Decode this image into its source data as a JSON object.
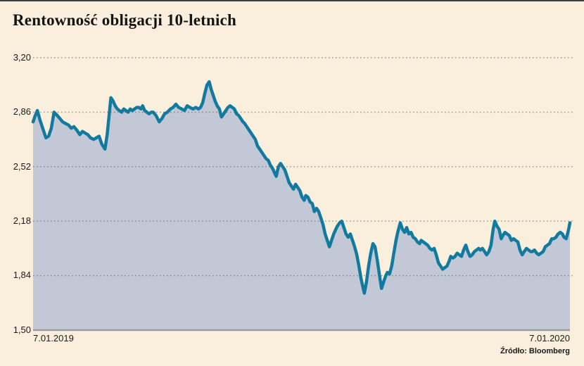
{
  "header": {
    "title": "Rentowność obligacji 10-letnich"
  },
  "source": {
    "label": "Źródło: Bloomberg"
  },
  "chart_data": {
    "type": "area",
    "title": "Rentowność obligacji 10-letnich",
    "x_range": [
      "7.01.2019",
      "7.01.2020"
    ],
    "x_axis_labels": {
      "start": "7.01.2019",
      "end": "7.01.2020"
    },
    "y_ticks": [
      "3,20",
      "2,86",
      "2,52",
      "2,18",
      "1,84",
      "1,50"
    ],
    "y_tick_values": [
      3.2,
      2.86,
      2.52,
      2.18,
      1.84,
      1.5
    ],
    "ylim": [
      1.5,
      3.2
    ],
    "grid": "horizontal-dotted",
    "legend": false,
    "colors": {
      "line": "#137a9f",
      "fill": "#c2c8d5",
      "background": "#faeedd",
      "grid": "#4f4f4f",
      "baseline": "#9b9ba1",
      "text": "#1a1a1a"
    },
    "points": [
      [
        0.0,
        2.8
      ],
      [
        0.004,
        2.84
      ],
      [
        0.008,
        2.87
      ],
      [
        0.013,
        2.81
      ],
      [
        0.018,
        2.76
      ],
      [
        0.024,
        2.7
      ],
      [
        0.029,
        2.71
      ],
      [
        0.034,
        2.76
      ],
      [
        0.039,
        2.86
      ],
      [
        0.045,
        2.84
      ],
      [
        0.05,
        2.82
      ],
      [
        0.055,
        2.8
      ],
      [
        0.06,
        2.79
      ],
      [
        0.066,
        2.78
      ],
      [
        0.071,
        2.76
      ],
      [
        0.076,
        2.77
      ],
      [
        0.081,
        2.75
      ],
      [
        0.087,
        2.72
      ],
      [
        0.092,
        2.74
      ],
      [
        0.097,
        2.73
      ],
      [
        0.102,
        2.72
      ],
      [
        0.107,
        2.7
      ],
      [
        0.113,
        2.69
      ],
      [
        0.118,
        2.7
      ],
      [
        0.123,
        2.71
      ],
      [
        0.128,
        2.66
      ],
      [
        0.134,
        2.63
      ],
      [
        0.138,
        2.72
      ],
      [
        0.142,
        2.85
      ],
      [
        0.145,
        2.95
      ],
      [
        0.149,
        2.93
      ],
      [
        0.153,
        2.9
      ],
      [
        0.157,
        2.88
      ],
      [
        0.161,
        2.87
      ],
      [
        0.165,
        2.86
      ],
      [
        0.169,
        2.88
      ],
      [
        0.173,
        2.87
      ],
      [
        0.177,
        2.86
      ],
      [
        0.181,
        2.88
      ],
      [
        0.185,
        2.87
      ],
      [
        0.189,
        2.88
      ],
      [
        0.193,
        2.89
      ],
      [
        0.197,
        2.89
      ],
      [
        0.201,
        2.88
      ],
      [
        0.204,
        2.9
      ],
      [
        0.208,
        2.87
      ],
      [
        0.212,
        2.86
      ],
      [
        0.216,
        2.85
      ],
      [
        0.22,
        2.86
      ],
      [
        0.224,
        2.86
      ],
      [
        0.229,
        2.84
      ],
      [
        0.235,
        2.8
      ],
      [
        0.24,
        2.82
      ],
      [
        0.245,
        2.85
      ],
      [
        0.25,
        2.86
      ],
      [
        0.256,
        2.88
      ],
      [
        0.261,
        2.89
      ],
      [
        0.266,
        2.91
      ],
      [
        0.271,
        2.89
      ],
      [
        0.277,
        2.88
      ],
      [
        0.282,
        2.87
      ],
      [
        0.287,
        2.9
      ],
      [
        0.292,
        2.89
      ],
      [
        0.298,
        2.88
      ],
      [
        0.303,
        2.89
      ],
      [
        0.308,
        2.88
      ],
      [
        0.312,
        2.89
      ],
      [
        0.316,
        2.92
      ],
      [
        0.32,
        2.98
      ],
      [
        0.324,
        3.03
      ],
      [
        0.328,
        3.05
      ],
      [
        0.332,
        3.0
      ],
      [
        0.336,
        2.96
      ],
      [
        0.339,
        2.93
      ],
      [
        0.343,
        2.9
      ],
      [
        0.347,
        2.88
      ],
      [
        0.351,
        2.83
      ],
      [
        0.355,
        2.85
      ],
      [
        0.359,
        2.87
      ],
      [
        0.363,
        2.89
      ],
      [
        0.367,
        2.9
      ],
      [
        0.371,
        2.89
      ],
      [
        0.375,
        2.88
      ],
      [
        0.379,
        2.85
      ],
      [
        0.383,
        2.84
      ],
      [
        0.387,
        2.82
      ],
      [
        0.391,
        2.8
      ],
      [
        0.394,
        2.79
      ],
      [
        0.398,
        2.77
      ],
      [
        0.402,
        2.75
      ],
      [
        0.406,
        2.73
      ],
      [
        0.41,
        2.71
      ],
      [
        0.414,
        2.69
      ],
      [
        0.418,
        2.65
      ],
      [
        0.422,
        2.63
      ],
      [
        0.426,
        2.61
      ],
      [
        0.43,
        2.59
      ],
      [
        0.434,
        2.57
      ],
      [
        0.438,
        2.56
      ],
      [
        0.442,
        2.53
      ],
      [
        0.446,
        2.51
      ],
      [
        0.45,
        2.48
      ],
      [
        0.453,
        2.46
      ],
      [
        0.457,
        2.52
      ],
      [
        0.461,
        2.54
      ],
      [
        0.465,
        2.52
      ],
      [
        0.469,
        2.5
      ],
      [
        0.473,
        2.46
      ],
      [
        0.477,
        2.42
      ],
      [
        0.481,
        2.4
      ],
      [
        0.485,
        2.38
      ],
      [
        0.489,
        2.41
      ],
      [
        0.493,
        2.39
      ],
      [
        0.497,
        2.37
      ],
      [
        0.501,
        2.33
      ],
      [
        0.505,
        2.31
      ],
      [
        0.508,
        2.34
      ],
      [
        0.512,
        2.33
      ],
      [
        0.516,
        2.3
      ],
      [
        0.52,
        2.29
      ],
      [
        0.524,
        2.24
      ],
      [
        0.528,
        2.26
      ],
      [
        0.532,
        2.24
      ],
      [
        0.536,
        2.2
      ],
      [
        0.54,
        2.16
      ],
      [
        0.544,
        2.1
      ],
      [
        0.548,
        2.06
      ],
      [
        0.552,
        2.02
      ],
      [
        0.556,
        2.06
      ],
      [
        0.56,
        2.1
      ],
      [
        0.564,
        2.13
      ],
      [
        0.567,
        2.15
      ],
      [
        0.571,
        2.17
      ],
      [
        0.575,
        2.18
      ],
      [
        0.579,
        2.14
      ],
      [
        0.583,
        2.1
      ],
      [
        0.587,
        2.08
      ],
      [
        0.591,
        2.1
      ],
      [
        0.595,
        2.06
      ],
      [
        0.599,
        2.02
      ],
      [
        0.603,
        1.97
      ],
      [
        0.607,
        1.9
      ],
      [
        0.611,
        1.82
      ],
      [
        0.615,
        1.76
      ],
      [
        0.617,
        1.73
      ],
      [
        0.621,
        1.8
      ],
      [
        0.625,
        1.9
      ],
      [
        0.629,
        1.98
      ],
      [
        0.633,
        2.04
      ],
      [
        0.637,
        2.02
      ],
      [
        0.641,
        1.94
      ],
      [
        0.645,
        1.85
      ],
      [
        0.649,
        1.76
      ],
      [
        0.653,
        1.8
      ],
      [
        0.657,
        1.84
      ],
      [
        0.66,
        1.86
      ],
      [
        0.664,
        1.85
      ],
      [
        0.668,
        1.9
      ],
      [
        0.672,
        1.98
      ],
      [
        0.676,
        2.06
      ],
      [
        0.68,
        2.12
      ],
      [
        0.684,
        2.17
      ],
      [
        0.688,
        2.13
      ],
      [
        0.692,
        2.11
      ],
      [
        0.696,
        2.14
      ],
      [
        0.7,
        2.1
      ],
      [
        0.704,
        2.11
      ],
      [
        0.708,
        2.08
      ],
      [
        0.712,
        2.07
      ],
      [
        0.716,
        2.05
      ],
      [
        0.72,
        2.04
      ],
      [
        0.723,
        2.06
      ],
      [
        0.727,
        2.05
      ],
      [
        0.731,
        2.04
      ],
      [
        0.735,
        2.03
      ],
      [
        0.739,
        2.01
      ],
      [
        0.743,
        2.0
      ],
      [
        0.747,
        2.01
      ],
      [
        0.751,
        1.97
      ],
      [
        0.755,
        1.92
      ],
      [
        0.759,
        1.9
      ],
      [
        0.763,
        1.88
      ],
      [
        0.767,
        1.89
      ],
      [
        0.771,
        1.9
      ],
      [
        0.775,
        1.93
      ],
      [
        0.778,
        1.96
      ],
      [
        0.782,
        1.95
      ],
      [
        0.786,
        1.96
      ],
      [
        0.79,
        1.98
      ],
      [
        0.794,
        1.97
      ],
      [
        0.798,
        1.96
      ],
      [
        0.802,
        2.0
      ],
      [
        0.806,
        2.03
      ],
      [
        0.81,
        1.99
      ],
      [
        0.814,
        1.96
      ],
      [
        0.818,
        1.97
      ],
      [
        0.822,
        1.99
      ],
      [
        0.826,
        2.0
      ],
      [
        0.83,
        2.01
      ],
      [
        0.833,
        2.0
      ],
      [
        0.837,
        2.01
      ],
      [
        0.841,
        1.99
      ],
      [
        0.845,
        1.97
      ],
      [
        0.849,
        1.99
      ],
      [
        0.853,
        2.03
      ],
      [
        0.857,
        2.13
      ],
      [
        0.86,
        2.18
      ],
      [
        0.864,
        2.15
      ],
      [
        0.868,
        2.13
      ],
      [
        0.872,
        2.07
      ],
      [
        0.875,
        2.09
      ],
      [
        0.879,
        2.11
      ],
      [
        0.883,
        2.1
      ],
      [
        0.887,
        2.09
      ],
      [
        0.891,
        2.06
      ],
      [
        0.895,
        2.07
      ],
      [
        0.899,
        2.06
      ],
      [
        0.903,
        2.05
      ],
      [
        0.907,
        2.0
      ],
      [
        0.911,
        1.97
      ],
      [
        0.915,
        1.99
      ],
      [
        0.919,
        2.01
      ],
      [
        0.923,
        2.0
      ],
      [
        0.927,
        1.99
      ],
      [
        0.93,
        1.99
      ],
      [
        0.934,
        2.0
      ],
      [
        0.938,
        1.98
      ],
      [
        0.942,
        1.97
      ],
      [
        0.946,
        1.98
      ],
      [
        0.95,
        1.99
      ],
      [
        0.954,
        2.02
      ],
      [
        0.958,
        2.03
      ],
      [
        0.962,
        2.04
      ],
      [
        0.966,
        2.07
      ],
      [
        0.97,
        2.07
      ],
      [
        0.974,
        2.08
      ],
      [
        0.978,
        2.1
      ],
      [
        0.982,
        2.11
      ],
      [
        0.986,
        2.1
      ],
      [
        0.989,
        2.08
      ],
      [
        0.993,
        2.07
      ],
      [
        0.997,
        2.12
      ],
      [
        1.0,
        2.17
      ]
    ]
  }
}
